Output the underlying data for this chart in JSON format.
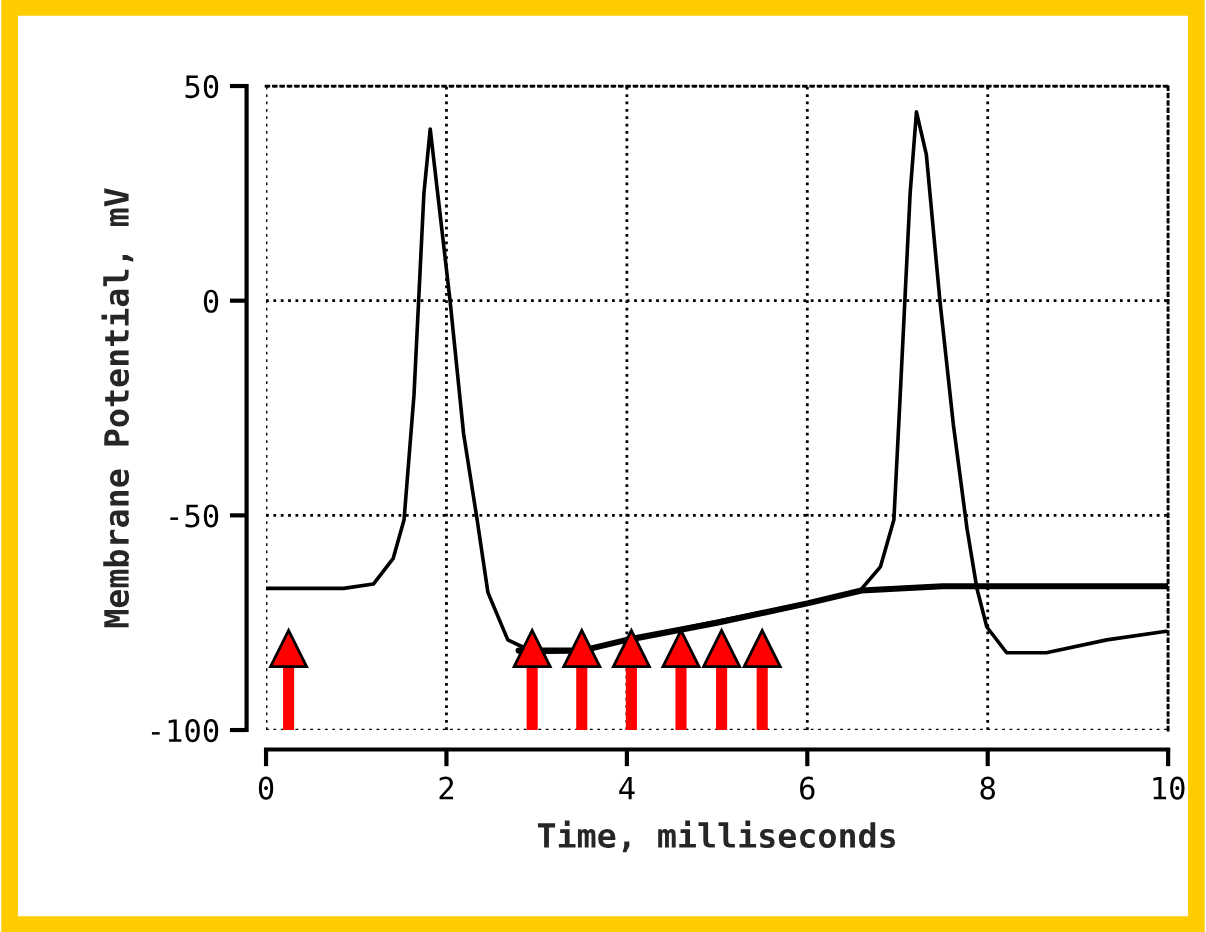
{
  "chart_data": {
    "type": "line",
    "xlabel": "Time, milliseconds",
    "ylabel": "Membrane Potential, mV",
    "xlim": [
      0,
      10
    ],
    "ylim": [
      -100,
      50
    ],
    "xticks": [
      0,
      2,
      4,
      6,
      8,
      10
    ],
    "yticks": [
      -100,
      -50,
      0,
      50
    ],
    "grid": true,
    "line_style": "dotted",
    "series": [
      {
        "color": "#000000",
        "line_style": "solid",
        "x": [
          0,
          0.86,
          1.19,
          1.41,
          1.53,
          1.64,
          1.75,
          1.82,
          1.93,
          2.04,
          2.19,
          2.34,
          2.46,
          2.68,
          2.98,
          3.5,
          4.0,
          5.25,
          6.0,
          6.59,
          6.81,
          6.96,
          7.03,
          7.14,
          7.21,
          7.32,
          7.47,
          7.62,
          7.77,
          7.88,
          7.99,
          8.21,
          8.65,
          9.32,
          9.98
        ],
        "values": [
          -67,
          -67,
          -66,
          -60,
          -51,
          -22,
          25,
          40,
          20,
          0,
          -31,
          -51,
          -68,
          -79,
          -82,
          -81.5,
          -79,
          -73.6,
          -70.5,
          -67.4,
          -62,
          -51,
          -22,
          25,
          44,
          34,
          0,
          -29,
          -53,
          -67,
          -76,
          -82,
          -82,
          -79,
          -77
        ]
      },
      {
        "color": "#000000",
        "line_style": "solid",
        "x": [
          2.8,
          3.5,
          4.0,
          5.0,
          6.0,
          6.6,
          7.5,
          10
        ],
        "values": [
          -81.5,
          -81.5,
          -79,
          -75,
          -70.5,
          -67.5,
          -66.5,
          -66.5
        ]
      },
      {
        "type": "lollipop",
        "marker": "triangle",
        "color": "#ff0000",
        "x": [
          0.25,
          2.95,
          3.5,
          4.05,
          4.6,
          5.05,
          5.5
        ],
        "values": [
          -81,
          -81,
          -81,
          -81,
          -81,
          -81,
          -81
        ]
      }
    ]
  }
}
